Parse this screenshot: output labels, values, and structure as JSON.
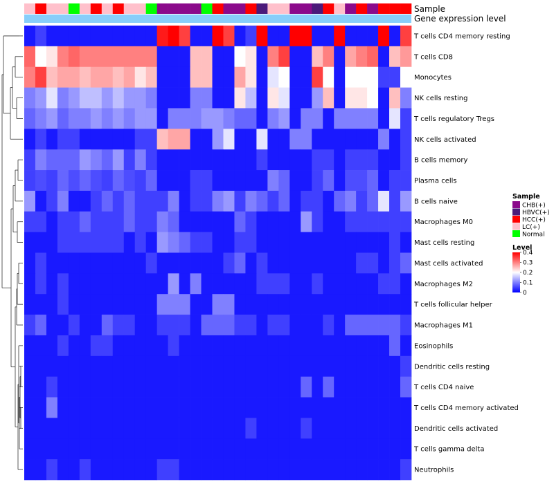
{
  "chart_data": {
    "type": "heatmap",
    "title": "",
    "annotation_tracks": [
      "Sample",
      "Gene expression level"
    ],
    "rows": [
      "T cells CD4 memory resting",
      "T cells CD8",
      "Monocytes",
      "NK cells resting",
      "T cells regulatory  Tregs",
      "NK cells activated",
      "B cells memory",
      "Plasma cells",
      "B cells naive",
      "Macrophages M0",
      "Mast cells resting",
      "Mast cells activated",
      "Macrophages M2",
      "T cells follicular helper",
      "Macrophages M1",
      "Eosinophils",
      "Dendritic cells resting",
      "T cells CD4 naive",
      "T cells CD4 memory activated",
      "Dendritic cells activated",
      "T cells gamma delta",
      "Neutrophils"
    ],
    "sample_groups": [
      "LC",
      "HCC",
      "LC",
      "LC",
      "Normal",
      "LC",
      "HCC",
      "LC",
      "HCC",
      "LC",
      "LC",
      "Normal",
      "CHB",
      "CHB",
      "CHB",
      "CHB",
      "Normal",
      "HCC",
      "CHB",
      "CHB",
      "HCC",
      "HBVC",
      "LC",
      "LC",
      "CHB",
      "CHB",
      "HBVC",
      "HCC",
      "LC",
      "CHB",
      "HCC",
      "CHB",
      "HCC",
      "HCC",
      "HCC"
    ],
    "values": [
      [
        0.02,
        0.05,
        0.02,
        0.02,
        0.02,
        0.02,
        0.02,
        0.02,
        0.02,
        0.02,
        0.02,
        0.02,
        0.38,
        0.42,
        0.35,
        0.02,
        0.02,
        0.42,
        0.35,
        0.02,
        0.05,
        0.42,
        0.02,
        0.02,
        0.42,
        0.42,
        0.02,
        0.02,
        0.42,
        0.02,
        0.02,
        0.02,
        0.42,
        0.02,
        0.35
      ],
      [
        0.32,
        0.2,
        0.22,
        0.3,
        0.32,
        0.3,
        0.3,
        0.3,
        0.3,
        0.3,
        0.3,
        0.3,
        0.02,
        0.02,
        0.02,
        0.25,
        0.25,
        0.02,
        0.02,
        0.2,
        0.22,
        0.02,
        0.3,
        0.35,
        0.02,
        0.02,
        0.25,
        0.3,
        0.02,
        0.27,
        0.3,
        0.32,
        0.02,
        0.25,
        0.28
      ],
      [
        0.3,
        0.35,
        0.25,
        0.27,
        0.27,
        0.25,
        0.27,
        0.27,
        0.25,
        0.27,
        0.22,
        0.25,
        0.02,
        0.02,
        0.02,
        0.25,
        0.25,
        0.02,
        0.02,
        0.27,
        0.22,
        0.02,
        0.18,
        0.2,
        0.02,
        0.02,
        0.35,
        0.2,
        0.02,
        0.2,
        0.2,
        0.2,
        0.05,
        0.05,
        0.2
      ],
      [
        0.1,
        0.12,
        0.18,
        0.1,
        0.12,
        0.15,
        0.15,
        0.12,
        0.15,
        0.12,
        0.12,
        0.1,
        0.02,
        0.02,
        0.02,
        0.1,
        0.1,
        0.02,
        0.02,
        0.22,
        0.15,
        0.02,
        0.22,
        0.18,
        0.02,
        0.02,
        0.12,
        0.25,
        0.02,
        0.22,
        0.22,
        0.2,
        0.02,
        0.25,
        0.1
      ],
      [
        0.08,
        0.1,
        0.12,
        0.08,
        0.1,
        0.1,
        0.12,
        0.1,
        0.12,
        0.1,
        0.12,
        0.12,
        0.02,
        0.1,
        0.1,
        0.1,
        0.12,
        0.12,
        0.1,
        0.08,
        0.08,
        0.02,
        0.1,
        0.12,
        0.02,
        0.1,
        0.1,
        0.02,
        0.1,
        0.1,
        0.1,
        0.1,
        0.02,
        0.18,
        0.05
      ],
      [
        0.02,
        0.05,
        0.02,
        0.05,
        0.05,
        0.02,
        0.02,
        0.02,
        0.02,
        0.02,
        0.05,
        0.05,
        0.25,
        0.27,
        0.27,
        0.02,
        0.02,
        0.12,
        0.18,
        0.02,
        0.02,
        0.18,
        0.02,
        0.02,
        0.1,
        0.1,
        0.02,
        0.02,
        0.02,
        0.02,
        0.02,
        0.02,
        0.1,
        0.02,
        0.05
      ],
      [
        0.05,
        0.1,
        0.08,
        0.08,
        0.08,
        0.12,
        0.1,
        0.08,
        0.12,
        0.05,
        0.1,
        0.05,
        0.02,
        0.02,
        0.02,
        0.02,
        0.02,
        0.02,
        0.02,
        0.02,
        0.02,
        0.05,
        0.02,
        0.02,
        0.02,
        0.02,
        0.05,
        0.05,
        0.02,
        0.05,
        0.05,
        0.05,
        0.02,
        0.02,
        0.05
      ],
      [
        0.05,
        0.06,
        0.05,
        0.08,
        0.06,
        0.08,
        0.06,
        0.05,
        0.08,
        0.06,
        0.05,
        0.08,
        0.02,
        0.02,
        0.02,
        0.05,
        0.05,
        0.02,
        0.02,
        0.02,
        0.02,
        0.02,
        0.1,
        0.08,
        0.02,
        0.02,
        0.05,
        0.08,
        0.02,
        0.06,
        0.06,
        0.08,
        0.02,
        0.05,
        0.05
      ],
      [
        0.12,
        0.02,
        0.05,
        0.1,
        0.02,
        0.02,
        0.05,
        0.08,
        0.05,
        0.08,
        0.05,
        0.05,
        0.05,
        0.1,
        0.02,
        0.05,
        0.05,
        0.1,
        0.12,
        0.05,
        0.1,
        0.08,
        0.05,
        0.08,
        0.02,
        0.05,
        0.05,
        0.02,
        0.08,
        0.1,
        0.05,
        0.08,
        0.18,
        0.05,
        0.12
      ],
      [
        0.05,
        0.05,
        0.02,
        0.05,
        0.05,
        0.08,
        0.05,
        0.05,
        0.05,
        0.08,
        0.05,
        0.05,
        0.1,
        0.08,
        0.02,
        0.02,
        0.02,
        0.02,
        0.02,
        0.08,
        0.05,
        0.02,
        0.02,
        0.02,
        0.02,
        0.12,
        0.05,
        0.02,
        0.02,
        0.05,
        0.05,
        0.05,
        0.05,
        0.05,
        0.05
      ],
      [
        0.02,
        0.02,
        0.02,
        0.05,
        0.05,
        0.05,
        0.05,
        0.05,
        0.05,
        0.02,
        0.05,
        0.02,
        0.12,
        0.1,
        0.08,
        0.05,
        0.05,
        0.02,
        0.02,
        0.05,
        0.05,
        0.02,
        0.02,
        0.02,
        0.02,
        0.02,
        0.02,
        0.02,
        0.02,
        0.02,
        0.02,
        0.02,
        0.02,
        0.05,
        0.02
      ],
      [
        0.02,
        0.05,
        0.02,
        0.02,
        0.02,
        0.02,
        0.02,
        0.02,
        0.02,
        0.02,
        0.02,
        0.05,
        0.02,
        0.02,
        0.02,
        0.02,
        0.02,
        0.02,
        0.05,
        0.08,
        0.02,
        0.05,
        0.02,
        0.02,
        0.02,
        0.02,
        0.02,
        0.02,
        0.02,
        0.02,
        0.05,
        0.05,
        0.02,
        0.05,
        0.08
      ],
      [
        0.02,
        0.05,
        0.02,
        0.05,
        0.02,
        0.02,
        0.02,
        0.02,
        0.02,
        0.02,
        0.02,
        0.02,
        0.02,
        0.12,
        0.02,
        0.1,
        0.02,
        0.02,
        0.02,
        0.02,
        0.02,
        0.05,
        0.05,
        0.05,
        0.02,
        0.02,
        0.05,
        0.02,
        0.02,
        0.02,
        0.02,
        0.02,
        0.05,
        0.05,
        0.02
      ],
      [
        0.02,
        0.02,
        0.02,
        0.05,
        0.02,
        0.02,
        0.02,
        0.02,
        0.02,
        0.02,
        0.02,
        0.02,
        0.1,
        0.1,
        0.1,
        0.02,
        0.02,
        0.1,
        0.1,
        0.02,
        0.02,
        0.02,
        0.02,
        0.02,
        0.02,
        0.02,
        0.02,
        0.02,
        0.02,
        0.02,
        0.02,
        0.02,
        0.02,
        0.02,
        0.02
      ],
      [
        0.05,
        0.08,
        0.02,
        0.02,
        0.05,
        0.02,
        0.02,
        0.08,
        0.05,
        0.05,
        0.02,
        0.02,
        0.05,
        0.05,
        0.05,
        0.02,
        0.08,
        0.08,
        0.08,
        0.05,
        0.05,
        0.02,
        0.05,
        0.05,
        0.02,
        0.02,
        0.02,
        0.05,
        0.02,
        0.08,
        0.08,
        0.08,
        0.08,
        0.08,
        0.05
      ],
      [
        0.02,
        0.02,
        0.02,
        0.05,
        0.02,
        0.02,
        0.05,
        0.05,
        0.02,
        0.02,
        0.02,
        0.02,
        0.02,
        0.05,
        0.02,
        0.02,
        0.02,
        0.02,
        0.02,
        0.02,
        0.02,
        0.02,
        0.02,
        0.02,
        0.02,
        0.02,
        0.02,
        0.02,
        0.02,
        0.02,
        0.02,
        0.02,
        0.02,
        0.08,
        0.02
      ],
      [
        0.02,
        0.02,
        0.02,
        0.02,
        0.02,
        0.02,
        0.02,
        0.02,
        0.02,
        0.02,
        0.02,
        0.02,
        0.02,
        0.02,
        0.02,
        0.02,
        0.02,
        0.02,
        0.02,
        0.02,
        0.02,
        0.02,
        0.02,
        0.02,
        0.02,
        0.02,
        0.02,
        0.02,
        0.02,
        0.02,
        0.02,
        0.02,
        0.02,
        0.02,
        0.05
      ],
      [
        0.02,
        0.02,
        0.05,
        0.02,
        0.02,
        0.02,
        0.02,
        0.02,
        0.02,
        0.02,
        0.02,
        0.02,
        0.02,
        0.02,
        0.02,
        0.02,
        0.02,
        0.02,
        0.02,
        0.02,
        0.02,
        0.02,
        0.02,
        0.02,
        0.02,
        0.08,
        0.02,
        0.08,
        0.02,
        0.02,
        0.02,
        0.02,
        0.02,
        0.02,
        0.08
      ],
      [
        0.02,
        0.02,
        0.1,
        0.02,
        0.02,
        0.02,
        0.02,
        0.02,
        0.02,
        0.02,
        0.02,
        0.02,
        0.02,
        0.02,
        0.02,
        0.02,
        0.02,
        0.02,
        0.02,
        0.02,
        0.02,
        0.02,
        0.02,
        0.02,
        0.02,
        0.02,
        0.02,
        0.02,
        0.02,
        0.02,
        0.02,
        0.02,
        0.02,
        0.02,
        0.02
      ],
      [
        0.02,
        0.02,
        0.02,
        0.02,
        0.02,
        0.02,
        0.02,
        0.02,
        0.02,
        0.02,
        0.02,
        0.02,
        0.02,
        0.02,
        0.02,
        0.02,
        0.02,
        0.02,
        0.02,
        0.02,
        0.05,
        0.02,
        0.02,
        0.02,
        0.02,
        0.05,
        0.02,
        0.02,
        0.02,
        0.02,
        0.02,
        0.02,
        0.02,
        0.02,
        0.02
      ],
      [
        0.02,
        0.02,
        0.02,
        0.02,
        0.02,
        0.02,
        0.02,
        0.02,
        0.02,
        0.02,
        0.02,
        0.02,
        0.02,
        0.02,
        0.02,
        0.02,
        0.02,
        0.02,
        0.02,
        0.02,
        0.02,
        0.02,
        0.02,
        0.02,
        0.02,
        0.02,
        0.02,
        0.02,
        0.02,
        0.02,
        0.02,
        0.02,
        0.02,
        0.02,
        0.02
      ],
      [
        0.02,
        0.02,
        0.05,
        0.02,
        0.02,
        0.05,
        0.02,
        0.02,
        0.02,
        0.02,
        0.02,
        0.02,
        0.05,
        0.05,
        0.02,
        0.02,
        0.02,
        0.02,
        0.02,
        0.02,
        0.02,
        0.02,
        0.02,
        0.02,
        0.02,
        0.02,
        0.02,
        0.02,
        0.02,
        0.02,
        0.02,
        0.02,
        0.02,
        0.02,
        0.05
      ]
    ],
    "expression_level_track_color": "#87CEFA",
    "legend": {
      "sample": {
        "title": "Sample",
        "entries": [
          {
            "key": "CHB",
            "label": "CHB(+)",
            "color": "#8B0A8B"
          },
          {
            "key": "HBVC",
            "label": "HBVC(+)",
            "color": "#4B1A7A"
          },
          {
            "key": "HCC",
            "label": "HCC(+)",
            "color": "#FF0000"
          },
          {
            "key": "LC",
            "label": "LC(+)",
            "color": "#FFC0CB"
          },
          {
            "key": "Normal",
            "label": "Normal",
            "color": "#00FF00"
          }
        ]
      },
      "level": {
        "title": "Level",
        "range": [
          0,
          0.4
        ],
        "ticks": [
          "0.4",
          "0.3",
          "0.2",
          "0.1",
          "0"
        ],
        "colors": [
          "#0000FF",
          "#FFFFFF",
          "#FF0000"
        ]
      }
    }
  }
}
